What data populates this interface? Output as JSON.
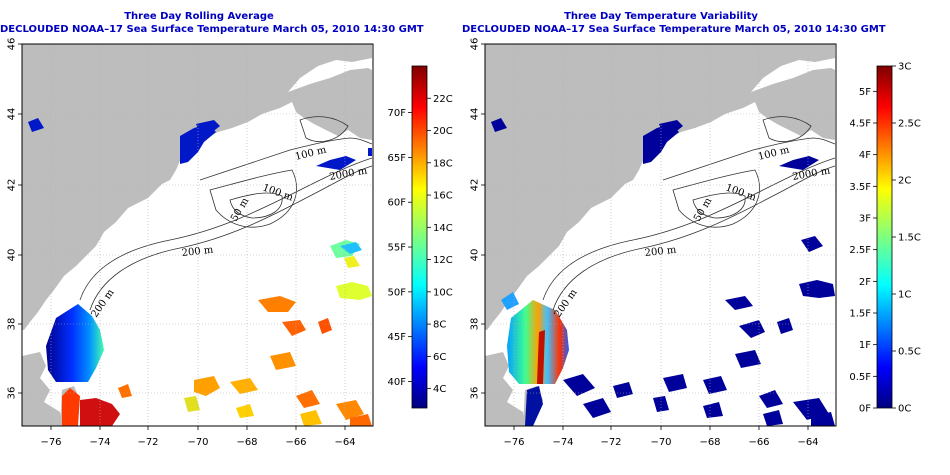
{
  "colors": {
    "land": "#bdbdbd",
    "ocean": "#ffffff",
    "title": "#0000c0",
    "grid": "#b0b0b0",
    "contour": "#333333"
  },
  "maps": [
    {
      "title": "Three Day Rolling Average",
      "subtitle": "DECLOUDED NOAA–17 Sea Surface Temperature March 05, 2010 14:30 GMT",
      "colorbar_c_labels": [
        "4C",
        "6C",
        "8C",
        "10C",
        "12C",
        "14C",
        "16C",
        "18C",
        "20C",
        "22C"
      ],
      "colorbar_f_labels": [
        "40F",
        "45F",
        "50F",
        "55F",
        "60F",
        "65F",
        "70F"
      ],
      "colormap": "jet"
    },
    {
      "title": "Three Day Temperature Variability",
      "subtitle": "DECLOUDED NOAA–17 Sea Surface Temperature March 05, 2010 14:30 GMT",
      "colorbar_c_labels": [
        "0C",
        "0.5C",
        "1C",
        "1.5C",
        "2C",
        "2.5C",
        "3C"
      ],
      "colorbar_f_labels": [
        "0F",
        "0.5F",
        "1F",
        "1.5F",
        "2F",
        "2.5F",
        "3F",
        "3.5F",
        "4F",
        "4.5F",
        "5F"
      ],
      "colormap": "jet"
    }
  ],
  "axes": {
    "x_ticks": [
      "−76",
      "−74",
      "−72",
      "−70",
      "−68",
      "−66",
      "−64"
    ],
    "y_ticks": [
      "36",
      "38",
      "40",
      "42",
      "44",
      "46"
    ]
  },
  "depth_contour_labels": [
    "100 m",
    "100 m",
    "2000 m",
    "200 m",
    "50 m",
    "200 m"
  ]
}
